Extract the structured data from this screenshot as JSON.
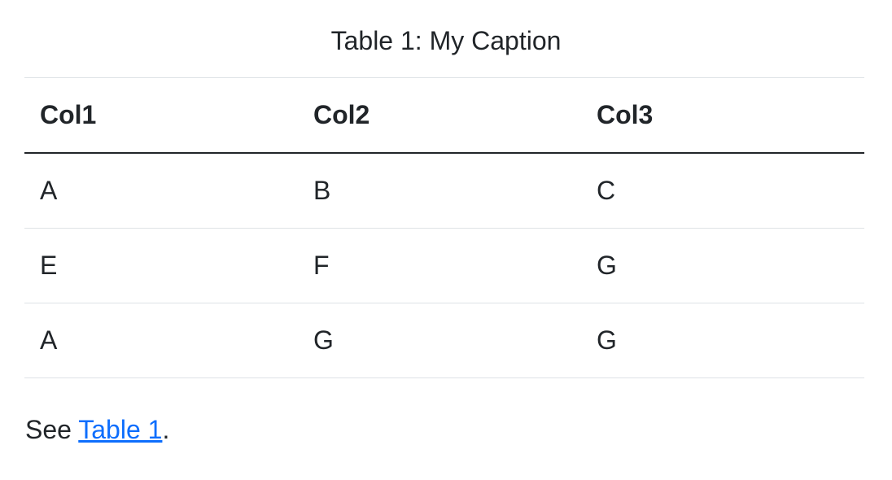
{
  "caption": "Table 1: My Caption",
  "table": {
    "headers": [
      "Col1",
      "Col2",
      "Col3"
    ],
    "rows": [
      [
        "A",
        "B",
        "C"
      ],
      [
        "E",
        "F",
        "G"
      ],
      [
        "A",
        "G",
        "G"
      ]
    ]
  },
  "paragraph": {
    "prefix": "See ",
    "link_text": "Table 1",
    "suffix": "."
  },
  "colors": {
    "text": "#212529",
    "link": "#0d6efd",
    "border": "#dee2e6"
  }
}
